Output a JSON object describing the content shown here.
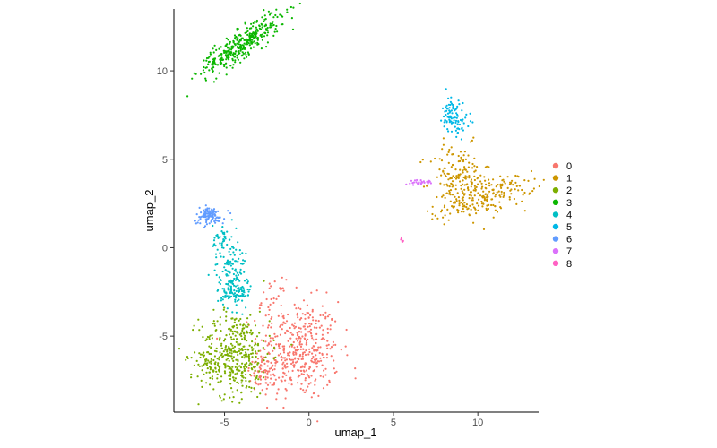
{
  "chart_data": {
    "type": "scatter",
    "title": "",
    "xlabel": "umap_1",
    "ylabel": "umap_2",
    "xlim": [
      -8,
      13.6
    ],
    "ylim": [
      -9.3,
      13.5
    ],
    "x_ticks": [
      -5,
      0,
      5,
      10
    ],
    "x_tick_labels": [
      "-5",
      "0",
      "5",
      "10"
    ],
    "y_ticks": [
      -5,
      0,
      5,
      10
    ],
    "y_tick_labels": [
      "-5",
      "0",
      "5",
      "10"
    ],
    "grid": false,
    "legend": {
      "position": "right"
    },
    "series": [
      {
        "name": "0",
        "color": "#F8766D",
        "clusters": [
          {
            "cx": -0.6,
            "cy": -5.8,
            "sx": 1.2,
            "sy": 1.4,
            "n": 420,
            "rot": 0
          },
          {
            "cx": -2.1,
            "cy": -3.0,
            "sx": 0.35,
            "sy": 0.6,
            "n": 30,
            "rot": 0
          },
          {
            "cx": -2.6,
            "cy": -7.2,
            "sx": 0.6,
            "sy": 0.5,
            "n": 60,
            "rot": 0
          }
        ]
      },
      {
        "name": "1",
        "color": "#CD9600",
        "clusters": [
          {
            "cx": 10.6,
            "cy": 2.9,
            "sx": 1.4,
            "sy": 0.45,
            "n": 180,
            "rot": 15
          },
          {
            "cx": 8.9,
            "cy": 3.9,
            "sx": 0.9,
            "sy": 0.95,
            "n": 170,
            "rot": 0
          }
        ]
      },
      {
        "name": "2",
        "color": "#7CAE00",
        "clusters": [
          {
            "cx": -4.4,
            "cy": -6.0,
            "sx": 1.05,
            "sy": 1.2,
            "n": 400,
            "rot": 0
          },
          {
            "cx": -5.7,
            "cy": -6.7,
            "sx": 0.4,
            "sy": 0.3,
            "n": 30,
            "rot": 0
          }
        ]
      },
      {
        "name": "3",
        "color": "#0CB702",
        "clusters": [
          {
            "cx": -4.0,
            "cy": 11.5,
            "sx": 1.45,
            "sy": 0.35,
            "n": 380,
            "rot": 34
          }
        ]
      },
      {
        "name": "4",
        "color": "#00BFC4",
        "clusters": [
          {
            "cx": -4.6,
            "cy": -1.3,
            "sx": 0.45,
            "sy": 1.0,
            "n": 150,
            "rot": 0
          },
          {
            "cx": -4.4,
            "cy": -2.6,
            "sx": 0.5,
            "sy": 0.3,
            "n": 60,
            "rot": 0
          },
          {
            "cx": -5.2,
            "cy": 0.5,
            "sx": 0.25,
            "sy": 0.4,
            "n": 30,
            "rot": 0
          }
        ]
      },
      {
        "name": "5",
        "color": "#00B8E7",
        "clusters": [
          {
            "cx": 8.4,
            "cy": 7.6,
            "sx": 0.25,
            "sy": 0.5,
            "n": 70,
            "rot": 0
          },
          {
            "cx": 9.0,
            "cy": 7.0,
            "sx": 0.35,
            "sy": 0.3,
            "n": 30,
            "rot": 0
          }
        ]
      },
      {
        "name": "6",
        "color": "#619CFF",
        "clusters": [
          {
            "cx": -5.9,
            "cy": 1.8,
            "sx": 0.45,
            "sy": 0.25,
            "n": 110,
            "rot": 0
          }
        ]
      },
      {
        "name": "7",
        "color": "#DB72FB",
        "clusters": [
          {
            "cx": 6.7,
            "cy": 3.7,
            "sx": 0.35,
            "sy": 0.07,
            "n": 30,
            "rot": 0
          }
        ]
      },
      {
        "name": "8",
        "color": "#FF61C3",
        "clusters": [
          {
            "cx": 5.5,
            "cy": 0.45,
            "sx": 0.04,
            "sy": 0.06,
            "n": 6,
            "rot": 0
          }
        ]
      }
    ]
  }
}
